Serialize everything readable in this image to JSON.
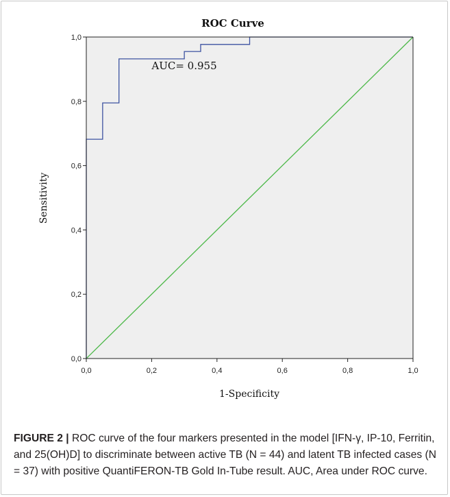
{
  "chart_data": {
    "type": "line",
    "title": "ROC Curve",
    "xlabel": "1-Specificity",
    "ylabel": "Sensitivity",
    "xlim": [
      0,
      1
    ],
    "ylim": [
      0,
      1
    ],
    "x_ticks": [
      "0,0",
      "0,2",
      "0,4",
      "0,6",
      "0,8",
      "1,0"
    ],
    "y_ticks": [
      "0,0",
      "0,2",
      "0,4",
      "0,6",
      "0,8",
      "1,0"
    ],
    "grid": false,
    "plot_background": "#efefef",
    "series": [
      {
        "color": "#3c52a1",
        "style": "step",
        "x": [
          0,
          0,
          0.05,
          0.05,
          0.1,
          0.1,
          0.3,
          0.3,
          0.35,
          0.35,
          0.5,
          0.5,
          1.0
        ],
        "y": [
          0,
          0.682,
          0.682,
          0.795,
          0.795,
          0.932,
          0.932,
          0.955,
          0.955,
          0.977,
          0.977,
          1.0,
          1.0
        ]
      },
      {
        "color": "#4cb848",
        "style": "line",
        "x": [
          0,
          1
        ],
        "y": [
          0,
          1
        ]
      }
    ],
    "annotations": [
      {
        "text": "AUC= 0.955",
        "x": 0.2,
        "y": 0.9
      }
    ]
  },
  "caption": {
    "label": "FIGURE 2",
    "separator": " | ",
    "text": "ROC curve of the four markers presented in the model [IFN-γ, IP-10, Ferritin, and 25(OH)D] to discriminate between active TB (N = 44) and latent TB infected cases (N = 37) with positive QuantiFERON-TB Gold In-Tube result. AUC, Area under ROC curve."
  }
}
